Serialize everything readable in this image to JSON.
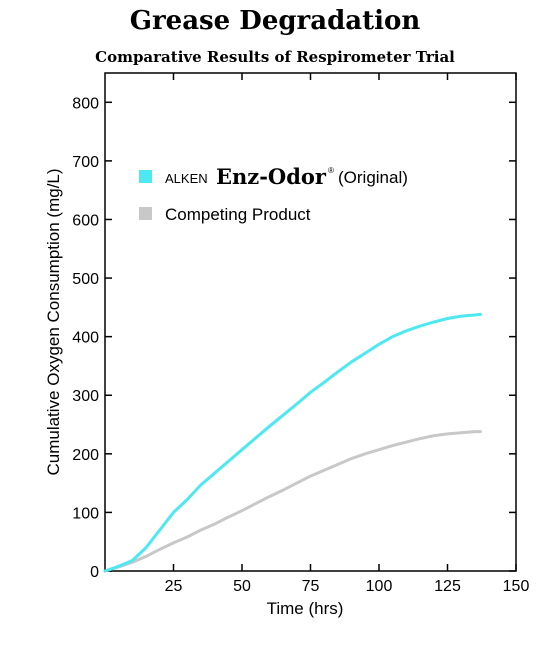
{
  "header": {
    "title": "Grease Degradation",
    "subtitle": "Comparative Results of Respirometer Trial"
  },
  "legend": {
    "series1_prefix": "ALKEN",
    "series1_brand": "Enz-Odor",
    "series1_reg": "®",
    "series1_suffix": "(Original)",
    "series2_label": "Competing Product"
  },
  "colors": {
    "series1": "#4de8f2",
    "series2": "#c8c8c8"
  },
  "chart_data": {
    "type": "line",
    "xlabel": "Time (hrs)",
    "ylabel": "Cumulative Oxygen Consumption (mg/L)",
    "xlim": [
      0,
      150
    ],
    "ylim": [
      0,
      850
    ],
    "xticks": [
      25,
      50,
      75,
      100,
      125,
      150
    ],
    "yticks": [
      0,
      100,
      200,
      300,
      400,
      500,
      600,
      700,
      800
    ],
    "grid": false,
    "legend_position": "top-left",
    "series": [
      {
        "name": "ALKEN Enz-Odor® (Original)",
        "x": [
          0,
          5,
          10,
          15,
          20,
          25,
          30,
          35,
          40,
          45,
          50,
          55,
          60,
          65,
          70,
          75,
          80,
          85,
          90,
          95,
          100,
          105,
          110,
          115,
          120,
          125,
          130,
          135,
          137
        ],
        "y": [
          0,
          8,
          18,
          40,
          70,
          100,
          122,
          147,
          167,
          187,
          207,
          227,
          247,
          266,
          285,
          305,
          322,
          340,
          357,
          372,
          387,
          400,
          410,
          418,
          425,
          431,
          435,
          437,
          438
        ]
      },
      {
        "name": "Competing Product",
        "x": [
          0,
          5,
          10,
          15,
          20,
          25,
          30,
          35,
          40,
          45,
          50,
          55,
          60,
          65,
          70,
          75,
          80,
          85,
          90,
          95,
          100,
          105,
          110,
          115,
          120,
          125,
          130,
          135,
          137
        ],
        "y": [
          0,
          7,
          15,
          25,
          37,
          48,
          58,
          70,
          80,
          92,
          103,
          115,
          127,
          138,
          150,
          162,
          172,
          182,
          192,
          200,
          207,
          214,
          220,
          226,
          231,
          234,
          236,
          238,
          238
        ]
      }
    ]
  }
}
